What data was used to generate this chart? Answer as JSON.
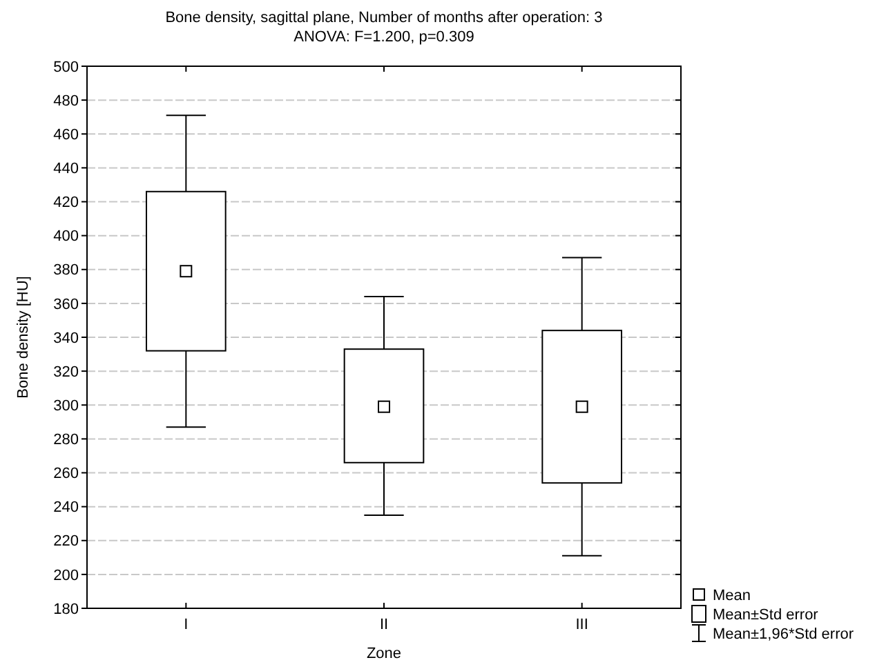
{
  "chart_data": {
    "type": "box",
    "title": "Bone density, sagittal plane, Number of months after operation: 3",
    "subtitle": "ANOVA: F=1.200, p=0.309",
    "xlabel": "Zone",
    "ylabel": "Bone density [HU]",
    "categories": [
      "I",
      "II",
      "III"
    ],
    "boxes": [
      {
        "low": 287,
        "q1": 332,
        "q3": 426,
        "high": 471,
        "mean": 379
      },
      {
        "low": 235,
        "q1": 266,
        "q3": 333,
        "high": 364,
        "mean": 299
      },
      {
        "low": 211,
        "q1": 254,
        "q3": 344,
        "high": 387,
        "mean": 299
      }
    ],
    "ylim": [
      180,
      500
    ],
    "yticks": [
      180,
      200,
      220,
      240,
      260,
      280,
      300,
      320,
      340,
      360,
      380,
      400,
      420,
      440,
      460,
      480,
      500
    ],
    "grid": "y",
    "color": "#ffffff",
    "annotations": [
      "Mean",
      "Mean±Std error",
      "Mean±1,96*Std error"
    ]
  }
}
